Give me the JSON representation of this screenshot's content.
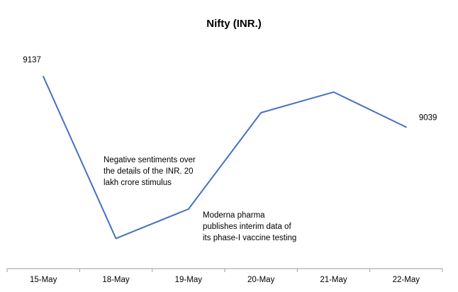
{
  "chart_data": {
    "type": "line",
    "title": "Nifty (INR.)",
    "xlabel": "",
    "ylabel": "",
    "categories": [
      "15-May",
      "18-May",
      "19-May",
      "20-May",
      "21-May",
      "22-May"
    ],
    "series": [
      {
        "values": [
          9137,
          8823,
          8880,
          9067,
          9107,
          9039
        ],
        "color": "#4472C4"
      }
    ],
    "ylim": [
      8770,
      9210
    ],
    "grid": false,
    "legend": "none",
    "data_labels": [
      {
        "index": 0,
        "text": "9137"
      },
      {
        "index": 5,
        "text": "9039"
      }
    ],
    "annotations": [
      {
        "near_index": 1,
        "lines": [
          "Negative sentiments over",
          "the details of the INR. 20",
          "lakh crore stimulus"
        ]
      },
      {
        "near_index": 2,
        "lines": [
          "Moderna pharma",
          "publishes interim data of",
          "its phase-I vaccine testing"
        ]
      }
    ]
  }
}
